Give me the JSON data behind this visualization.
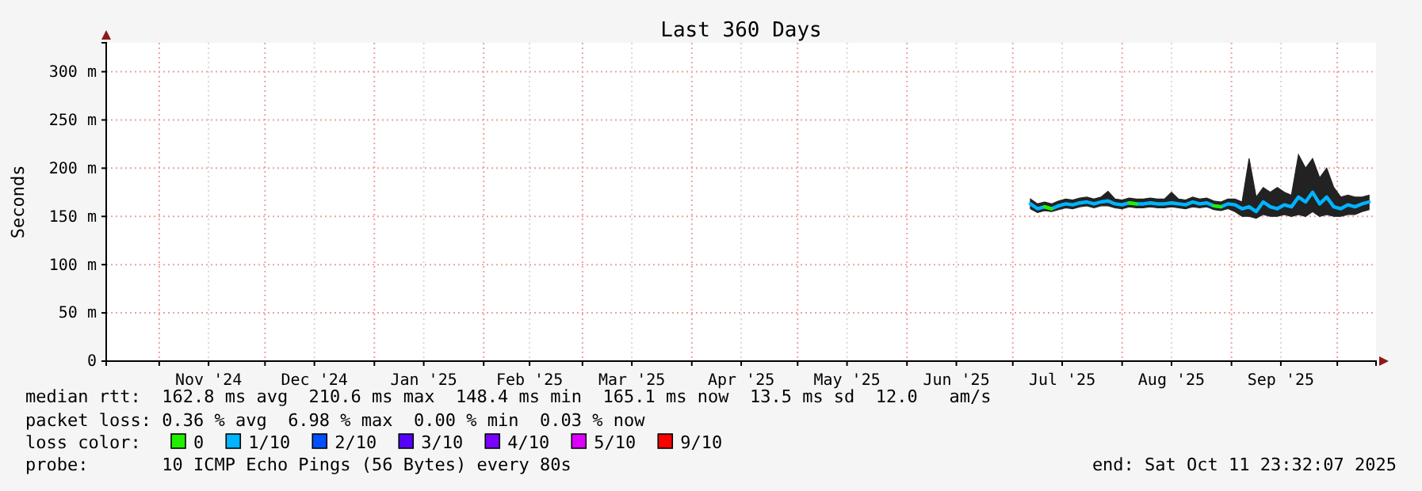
{
  "chart_data": {
    "type": "line",
    "title": "Last 360 Days",
    "ylabel": "Seconds",
    "x": [
      "2025-07-06",
      "2025-07-08",
      "2025-07-10",
      "2025-07-12",
      "2025-07-14",
      "2025-07-16",
      "2025-07-18",
      "2025-07-20",
      "2025-07-22",
      "2025-07-24",
      "2025-07-26",
      "2025-07-28",
      "2025-07-30",
      "2025-08-01",
      "2025-08-03",
      "2025-08-05",
      "2025-08-07",
      "2025-08-09",
      "2025-08-11",
      "2025-08-13",
      "2025-08-15",
      "2025-08-17",
      "2025-08-19",
      "2025-08-21",
      "2025-08-23",
      "2025-08-25",
      "2025-08-27",
      "2025-08-29",
      "2025-08-31",
      "2025-09-02",
      "2025-09-04",
      "2025-09-06",
      "2025-09-08",
      "2025-09-10",
      "2025-09-12",
      "2025-09-14",
      "2025-09-16",
      "2025-09-18",
      "2025-09-20",
      "2025-09-22",
      "2025-09-24",
      "2025-09-26",
      "2025-09-28",
      "2025-09-30",
      "2025-10-02",
      "2025-10-04",
      "2025-10-06",
      "2025-10-08",
      "2025-10-10"
    ],
    "series": [
      {
        "name": "0",
        "color": "#22ee00",
        "values": [
          null,
          null,
          160,
          158,
          null,
          null,
          null,
          null,
          null,
          null,
          null,
          null,
          null,
          null,
          164,
          163,
          null,
          null,
          null,
          null,
          null,
          null,
          null,
          null,
          null,
          null,
          161,
          160,
          null,
          null,
          null,
          null,
          null,
          null,
          null,
          null,
          null,
          null,
          null,
          null,
          null,
          null,
          null,
          null,
          null,
          null,
          null,
          null,
          null
        ]
      },
      {
        "name": "1/10",
        "color": "#00b4ff",
        "values": [
          163,
          158,
          160,
          158,
          161,
          163,
          162,
          164,
          165,
          163,
          165,
          166,
          163,
          162,
          164,
          163,
          163,
          164,
          163,
          163,
          164,
          163,
          162,
          165,
          163,
          164,
          161,
          160,
          163,
          162,
          158,
          160,
          155,
          165,
          160,
          158,
          162,
          160,
          170,
          165,
          175,
          163,
          170,
          160,
          158,
          162,
          160,
          163,
          165
        ],
        "lower": [
          158,
          154,
          156,
          155,
          157,
          159,
          158,
          160,
          161,
          159,
          161,
          161,
          159,
          158,
          160,
          159,
          159,
          160,
          159,
          159,
          160,
          159,
          158,
          160,
          159,
          160,
          157,
          156,
          158,
          155,
          150,
          150,
          148,
          152,
          150,
          150,
          152,
          150,
          152,
          150,
          155,
          150,
          152,
          150,
          150,
          152,
          152,
          155,
          157
        ],
        "upper": [
          168,
          163,
          165,
          163,
          166,
          168,
          167,
          169,
          170,
          168,
          170,
          176,
          168,
          167,
          169,
          168,
          168,
          169,
          168,
          168,
          175,
          168,
          167,
          170,
          168,
          169,
          166,
          165,
          168,
          168,
          165,
          210,
          170,
          180,
          175,
          180,
          175,
          172,
          214,
          200,
          210,
          190,
          200,
          180,
          170,
          172,
          170,
          170,
          172
        ]
      },
      {
        "name": "2/10",
        "color": "#0050ff",
        "values": [
          null,
          null,
          null,
          null,
          null,
          null,
          null,
          null,
          null,
          null,
          null,
          null,
          null,
          null,
          null,
          null,
          null,
          null,
          null,
          null,
          null,
          null,
          null,
          null,
          null,
          null,
          null,
          null,
          null,
          null,
          null,
          null,
          null,
          null,
          null,
          null,
          null,
          null,
          null,
          null,
          null,
          null,
          null,
          null,
          null,
          null,
          null,
          null,
          null
        ]
      },
      {
        "name": "3/10",
        "color": "#5500ff",
        "values": [
          null,
          null,
          null,
          null,
          null,
          null,
          null,
          null,
          null,
          null,
          null,
          null,
          null,
          null,
          null,
          null,
          null,
          null,
          null,
          null,
          null,
          null,
          null,
          null,
          null,
          null,
          null,
          null,
          null,
          null,
          null,
          null,
          null,
          null,
          null,
          null,
          null,
          null,
          null,
          null,
          null,
          null,
          null,
          null,
          null,
          null,
          null,
          null,
          null
        ]
      },
      {
        "name": "4/10",
        "color": "#7a00ff",
        "values": [
          null,
          null,
          null,
          null,
          null,
          null,
          null,
          null,
          null,
          null,
          null,
          null,
          null,
          null,
          null,
          null,
          null,
          null,
          null,
          null,
          null,
          null,
          null,
          null,
          null,
          null,
          null,
          null,
          null,
          null,
          null,
          null,
          null,
          null,
          null,
          null,
          null,
          null,
          null,
          null,
          null,
          null,
          null,
          null,
          null,
          null,
          null,
          null,
          null
        ]
      },
      {
        "name": "5/10",
        "color": "#dd00ff",
        "values": [
          null,
          null,
          null,
          null,
          null,
          null,
          null,
          null,
          null,
          null,
          null,
          null,
          null,
          null,
          null,
          null,
          null,
          null,
          null,
          null,
          null,
          null,
          null,
          null,
          null,
          null,
          null,
          null,
          null,
          null,
          null,
          null,
          null,
          null,
          null,
          null,
          null,
          null,
          null,
          null,
          null,
          null,
          null,
          null,
          null,
          null,
          null,
          null,
          null
        ]
      },
      {
        "name": "9/10",
        "color": "#ff0000",
        "values": [
          null,
          null,
          null,
          null,
          null,
          null,
          null,
          null,
          null,
          null,
          null,
          null,
          null,
          null,
          null,
          null,
          null,
          null,
          null,
          null,
          null,
          null,
          null,
          null,
          null,
          null,
          null,
          null,
          null,
          null,
          null,
          null,
          null,
          null,
          null,
          null,
          null,
          null,
          null,
          null,
          null,
          null,
          null,
          null,
          null,
          null,
          null,
          null,
          null
        ]
      }
    ],
    "legend": "bottom",
    "legend_title": "loss color:",
    "grid": true,
    "marker": "none",
    "line_style": "solid",
    "xlim": [
      "2024-10-16T23:32",
      "2025-10-11T23:32"
    ],
    "xticks": [
      {
        "value": "2024-11-01",
        "label": null
      },
      {
        "value": "2024-11-15",
        "label": "Nov '24"
      },
      {
        "value": "2024-12-01",
        "label": null
      },
      {
        "value": "2024-12-15",
        "label": "Dec '24"
      },
      {
        "value": "2025-01-01",
        "label": null
      },
      {
        "value": "2025-01-15",
        "label": "Jan '25"
      },
      {
        "value": "2025-02-01",
        "label": null
      },
      {
        "value": "2025-02-14",
        "label": "Feb '25"
      },
      {
        "value": "2025-03-01",
        "label": null
      },
      {
        "value": "2025-03-15",
        "label": "Mar '25"
      },
      {
        "value": "2025-04-01",
        "label": null
      },
      {
        "value": "2025-04-15",
        "label": "Apr '25"
      },
      {
        "value": "2025-05-01",
        "label": null
      },
      {
        "value": "2025-05-15",
        "label": "May '25"
      },
      {
        "value": "2025-06-01",
        "label": null
      },
      {
        "value": "2025-06-15",
        "label": "Jun '25"
      },
      {
        "value": "2025-07-01",
        "label": null
      },
      {
        "value": "2025-07-15",
        "label": "Jul '25"
      },
      {
        "value": "2025-08-01",
        "label": null
      },
      {
        "value": "2025-08-15",
        "label": "Aug '25"
      },
      {
        "value": "2025-09-01",
        "label": null
      },
      {
        "value": "2025-09-15",
        "label": "Sep '25"
      },
      {
        "value": "2025-10-01",
        "label": null
      }
    ],
    "ylim": [
      0,
      330
    ],
    "yticks": [
      0,
      {
        "value": 50,
        "label": "50 m"
      },
      {
        "value": 100,
        "label": "100 m"
      },
      {
        "value": 150,
        "label": "150 m"
      },
      {
        "value": 200,
        "label": "200 m"
      },
      {
        "value": 250,
        "label": "250 m"
      },
      {
        "value": 300,
        "label": "300 m"
      }
    ],
    "annotations": [
      "median rtt:  162.8 ms avg  210.6 ms max  148.4 ms min  165.1 ms now  13.5 ms sd  12.0   am/s",
      "packet loss: 0.36 % avg  6.98 % max  0.00 % min  0.03 % now",
      "probe:       10 ICMP Echo Pings (56 Bytes) every 80s",
      "end: Sat Oct 11 23:32:07 2025"
    ]
  }
}
